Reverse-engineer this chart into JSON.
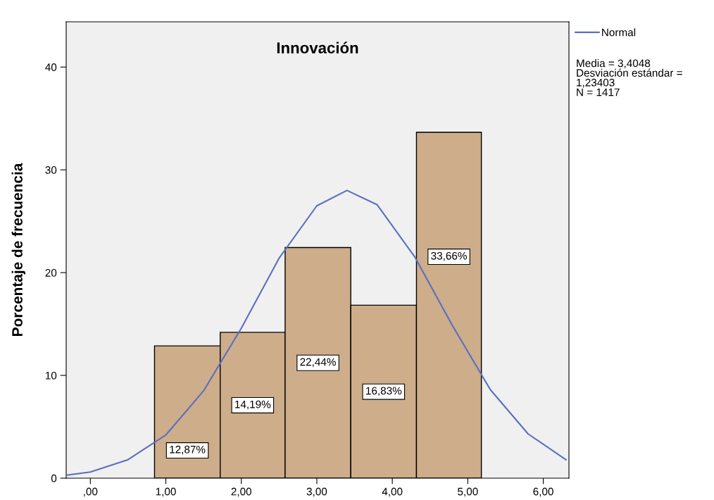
{
  "chart_data": {
    "type": "histogram",
    "title": "Innovación",
    "ylabel": "Porcentaje de frecuencia",
    "bins": [
      0.85,
      1.72,
      2.58,
      3.45,
      4.32,
      5.18
    ],
    "values": [
      12.87,
      14.19,
      22.44,
      16.83,
      33.66
    ],
    "value_labels": [
      "12,87%",
      "14,19%",
      "22,44%",
      "16,83%",
      "33,66%"
    ],
    "color": "#cdad8a",
    "series": [
      {
        "name": "Normal",
        "type": "line",
        "color": "#5a6fc0",
        "x": [
          -0.3,
          0,
          0.5,
          1,
          1.5,
          2,
          2.5,
          3,
          3.4,
          3.8,
          4.3,
          4.8,
          5.3,
          5.8,
          6.3
        ],
        "values": [
          0.3,
          0.6,
          1.8,
          4.2,
          8.5,
          14.6,
          21.4,
          26.5,
          28.0,
          26.6,
          21.5,
          14.8,
          8.6,
          4.3,
          1.8
        ]
      }
    ],
    "xlim": [
      -0.32,
      6.34
    ],
    "xticks": [
      {
        "value": 0,
        "label": ",00"
      },
      {
        "value": 1,
        "label": "1,00"
      },
      {
        "value": 2,
        "label": "2,00"
      },
      {
        "value": 3,
        "label": "3,00"
      },
      {
        "value": 4,
        "label": "4,00"
      },
      {
        "value": 5,
        "label": "5,00"
      },
      {
        "value": 6,
        "label": "6,00"
      }
    ],
    "ylim": [
      0,
      44.4
    ],
    "yticks": [
      0,
      10,
      20,
      30,
      40
    ],
    "grid": false,
    "legend": "top right",
    "annotations": [
      "Media = 3,4048\nDesviación estándar =\n1,23403\nN = 1417"
    ]
  }
}
